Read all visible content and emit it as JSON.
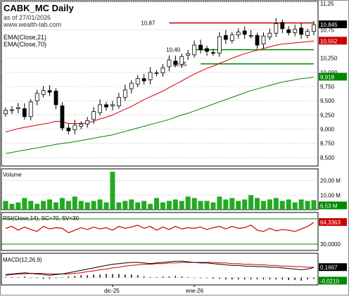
{
  "header": {
    "title": "CABK_MC Daily",
    "date_line": "as of 27/01/2026",
    "url": "www.wealth-lab.com",
    "ema_fast": "EMA(Close,21)",
    "ema_slow": "EMA(Close,70)"
  },
  "price_axis": {
    "tick_labels": [
      "11,25",
      "10,75",
      "10,552",
      "10,250",
      "10,000",
      "9,918",
      "9,750",
      "9,500",
      "9,250",
      "9,000",
      "8,750",
      "8,500"
    ],
    "last_price_label": "10,845",
    "ema_fast_label": "10,552",
    "ema_slow_label": "9,918"
  },
  "volume_axis": {
    "tick_labels": [
      "20,00 M",
      "10,00 M",
      "6,53 M"
    ]
  },
  "rsi_axis": {
    "tick_labels": [
      "64,3363",
      "30,0000"
    ]
  },
  "macd_axis": {
    "tick_labels": [
      "0,1667",
      "-0,0210"
    ]
  },
  "x_axis": {
    "tick_labels": [
      "dic-25",
      "ene-26"
    ]
  },
  "colors": {
    "up_candle": "#ffffff",
    "down_candle": "#000000",
    "ema_fast": "#cc0000",
    "ema_slow": "#008800",
    "volume": "#22aa22",
    "rsi": "#cc0000",
    "level_red": "#cc0000",
    "level_green": "#008800",
    "macd": "#000000",
    "signal": "#cc0000",
    "last_price_bg": "#000000",
    "ema_fast_bg": "#cc0000",
    "ema_slow_bg": "#008800",
    "volume_bg": "#008800"
  },
  "chart_data": {
    "type": "candlestick",
    "title": "CABK_MC Daily",
    "bars": 50,
    "x_labels": [
      "dic-25",
      "ene-26"
    ],
    "close": [
      9.33,
      9.34,
      9.38,
      9.22,
      9.48,
      9.63,
      9.68,
      9.65,
      9.43,
      9.02,
      8.97,
      9.07,
      9.09,
      9.15,
      9.31,
      9.43,
      9.39,
      9.43,
      9.56,
      9.69,
      9.81,
      9.89,
      9.85,
      10.0,
      9.99,
      10.08,
      10.22,
      10.14,
      10.28,
      10.33,
      10.48,
      10.4,
      10.37,
      10.34,
      10.63,
      10.58,
      10.66,
      10.71,
      10.67,
      10.65,
      10.48,
      10.64,
      10.69,
      10.86,
      10.77,
      10.7,
      10.76,
      10.67,
      10.72,
      10.84
    ],
    "ema_21": [
      8.95,
      8.98,
      9.01,
      9.03,
      9.05,
      9.07,
      9.09,
      9.11,
      9.14,
      9.13,
      9.1,
      9.1,
      9.1,
      9.11,
      9.14,
      9.18,
      9.21,
      9.25,
      9.3,
      9.35,
      9.4,
      9.46,
      9.52,
      9.57,
      9.62,
      9.67,
      9.73,
      9.79,
      9.85,
      9.91,
      9.97,
      10.02,
      10.07,
      10.11,
      10.16,
      10.2,
      10.25,
      10.29,
      10.33,
      10.36,
      10.39,
      10.42,
      10.45,
      10.48,
      10.5,
      10.51,
      10.52,
      10.53,
      10.54,
      10.552
    ],
    "ema_70": [
      8.57,
      8.59,
      8.61,
      8.63,
      8.65,
      8.67,
      8.69,
      8.71,
      8.73,
      8.75,
      8.76,
      8.78,
      8.8,
      8.82,
      8.84,
      8.86,
      8.88,
      8.9,
      8.93,
      8.96,
      8.99,
      9.02,
      9.05,
      9.08,
      9.11,
      9.14,
      9.17,
      9.21,
      9.25,
      9.28,
      9.32,
      9.36,
      9.4,
      9.44,
      9.48,
      9.52,
      9.56,
      9.6,
      9.64,
      9.68,
      9.71,
      9.74,
      9.77,
      9.8,
      9.83,
      9.85,
      9.87,
      9.89,
      9.9,
      9.918
    ],
    "volume_millions": [
      6,
      4,
      5,
      8,
      6,
      4,
      6,
      7,
      5,
      8,
      6,
      9,
      6,
      5,
      6,
      7,
      5,
      26,
      5,
      6,
      7,
      5,
      6,
      4,
      8,
      5,
      6,
      7,
      6,
      9,
      8,
      6,
      6,
      5,
      9,
      7,
      8,
      6,
      7,
      10,
      8,
      6,
      7,
      8,
      6,
      7,
      5,
      7,
      6,
      6.53
    ],
    "rsi": [
      55,
      58,
      52,
      57,
      53,
      50,
      58,
      54,
      56,
      55,
      48,
      52,
      56,
      53,
      57,
      54,
      56,
      52,
      58,
      55,
      57,
      60,
      55,
      58,
      52,
      57,
      53,
      58,
      54,
      56,
      55,
      57,
      53,
      56,
      58,
      54,
      58,
      55,
      56,
      60,
      52,
      50,
      55,
      51,
      53,
      52,
      50,
      54,
      58,
      64.34
    ],
    "macd": [
      0.05,
      0.06,
      0.07,
      0.08,
      0.07,
      0.06,
      0.05,
      0.04,
      0.05,
      0.06,
      0.08,
      0.1,
      0.12,
      0.14,
      0.16,
      0.18,
      0.2,
      0.22,
      0.23,
      0.24,
      0.25,
      0.25,
      0.24,
      0.23,
      0.24,
      0.25,
      0.26,
      0.27,
      0.27,
      0.26,
      0.25,
      0.24,
      0.24,
      0.23,
      0.22,
      0.21,
      0.2,
      0.2,
      0.19,
      0.19,
      0.18,
      0.18,
      0.17,
      0.17,
      0.16,
      0.15,
      0.14,
      0.13,
      0.14,
      0.1667
    ],
    "signal": [
      0.04,
      0.05,
      0.06,
      0.06,
      0.07,
      0.07,
      0.07,
      0.06,
      0.06,
      0.06,
      0.06,
      0.07,
      0.08,
      0.1,
      0.11,
      0.13,
      0.14,
      0.16,
      0.17,
      0.19,
      0.2,
      0.21,
      0.22,
      0.22,
      0.23,
      0.23,
      0.24,
      0.24,
      0.25,
      0.25,
      0.25,
      0.25,
      0.25,
      0.25,
      0.24,
      0.24,
      0.23,
      0.23,
      0.22,
      0.22,
      0.21,
      0.21,
      0.2,
      0.2,
      0.19,
      0.19,
      0.18,
      0.18,
      0.17,
      0.17
    ],
    "histogram": [
      0.01,
      0.01,
      0.01,
      0.02,
      0.0,
      -0.01,
      -0.02,
      -0.02,
      -0.01,
      0.0,
      0.02,
      0.03,
      0.04,
      0.04,
      0.05,
      0.05,
      0.06,
      0.06,
      0.06,
      0.05,
      0.05,
      0.04,
      0.02,
      0.01,
      0.01,
      0.02,
      0.02,
      0.03,
      0.02,
      0.01,
      0.0,
      -0.01,
      -0.01,
      -0.02,
      -0.02,
      -0.03,
      -0.03,
      -0.03,
      -0.03,
      -0.03,
      -0.03,
      -0.03,
      -0.03,
      -0.03,
      -0.03,
      -0.04,
      -0.04,
      -0.05,
      -0.03,
      -0.021
    ],
    "price_ylim": [
      8.35,
      11.25
    ],
    "volume_ylim": [
      0,
      28
    ],
    "rsi_ylim": [
      20,
      80
    ],
    "macd_ylim": [
      -0.12,
      0.4
    ],
    "rsi_levels": [
      70,
      30
    ],
    "levels": [
      {
        "label": "10,87",
        "value": 10.87,
        "color": "red",
        "from_bar": 26,
        "to_bar": 49
      },
      {
        "label": "10,40",
        "value": 10.4,
        "color": "green",
        "from_bar": 30,
        "to_bar": 49
      },
      {
        "label": "10,15",
        "value": 10.15,
        "color": "green",
        "from_bar": 31,
        "to_bar": 49
      }
    ]
  }
}
